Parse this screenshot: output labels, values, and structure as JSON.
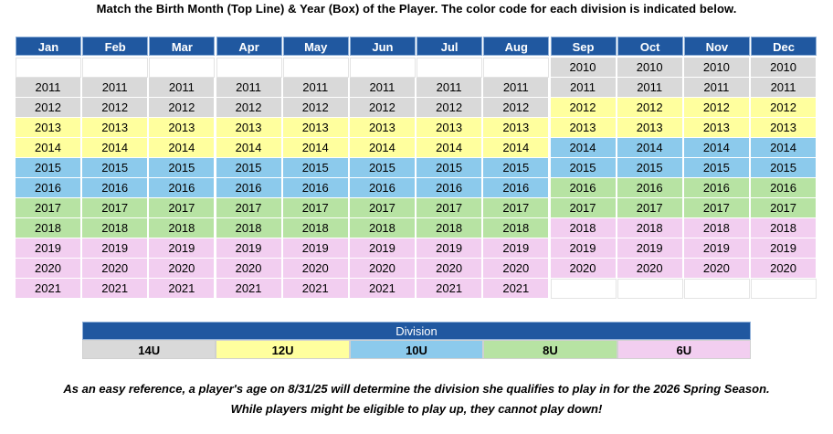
{
  "title": "Match the Birth Month (Top Line) & Year (Box) of the Player. The color code for each division is indicated below.",
  "months": [
    "Jan",
    "Feb",
    "Mar",
    "Apr",
    "May",
    "Jun",
    "Jul",
    "Aug",
    "Sep",
    "Oct",
    "Nov",
    "Dec"
  ],
  "colors": {
    "14U": "#d9d9d9",
    "12U": "#ffff9e",
    "10U": "#8ccaec",
    "8U": "#b7e3a3",
    "6U": "#f2cef0"
  },
  "grid_rows": [
    {
      "cells": [
        "",
        "",
        "",
        "",
        "",
        "",
        "",
        "",
        "2010",
        "2010",
        "2010",
        "2010"
      ],
      "divs": [
        "",
        "",
        "",
        "",
        "",
        "",
        "",
        "",
        "14U",
        "14U",
        "14U",
        "14U"
      ]
    },
    {
      "cells": [
        "2011",
        "2011",
        "2011",
        "2011",
        "2011",
        "2011",
        "2011",
        "2011",
        "2011",
        "2011",
        "2011",
        "2011"
      ],
      "divs": [
        "14U",
        "14U",
        "14U",
        "14U",
        "14U",
        "14U",
        "14U",
        "14U",
        "14U",
        "14U",
        "14U",
        "14U"
      ]
    },
    {
      "cells": [
        "2012",
        "2012",
        "2012",
        "2012",
        "2012",
        "2012",
        "2012",
        "2012",
        "2012",
        "2012",
        "2012",
        "2012"
      ],
      "divs": [
        "14U",
        "14U",
        "14U",
        "14U",
        "14U",
        "14U",
        "14U",
        "14U",
        "12U",
        "12U",
        "12U",
        "12U"
      ]
    },
    {
      "cells": [
        "2013",
        "2013",
        "2013",
        "2013",
        "2013",
        "2013",
        "2013",
        "2013",
        "2013",
        "2013",
        "2013",
        "2013"
      ],
      "divs": [
        "12U",
        "12U",
        "12U",
        "12U",
        "12U",
        "12U",
        "12U",
        "12U",
        "12U",
        "12U",
        "12U",
        "12U"
      ]
    },
    {
      "cells": [
        "2014",
        "2014",
        "2014",
        "2014",
        "2014",
        "2014",
        "2014",
        "2014",
        "2014",
        "2014",
        "2014",
        "2014"
      ],
      "divs": [
        "12U",
        "12U",
        "12U",
        "12U",
        "12U",
        "12U",
        "12U",
        "12U",
        "10U",
        "10U",
        "10U",
        "10U"
      ]
    },
    {
      "cells": [
        "2015",
        "2015",
        "2015",
        "2015",
        "2015",
        "2015",
        "2015",
        "2015",
        "2015",
        "2015",
        "2015",
        "2015"
      ],
      "divs": [
        "10U",
        "10U",
        "10U",
        "10U",
        "10U",
        "10U",
        "10U",
        "10U",
        "10U",
        "10U",
        "10U",
        "10U"
      ]
    },
    {
      "cells": [
        "2016",
        "2016",
        "2016",
        "2016",
        "2016",
        "2016",
        "2016",
        "2016",
        "2016",
        "2016",
        "2016",
        "2016"
      ],
      "divs": [
        "10U",
        "10U",
        "10U",
        "10U",
        "10U",
        "10U",
        "10U",
        "10U",
        "8U",
        "8U",
        "8U",
        "8U"
      ]
    },
    {
      "cells": [
        "2017",
        "2017",
        "2017",
        "2017",
        "2017",
        "2017",
        "2017",
        "2017",
        "2017",
        "2017",
        "2017",
        "2017"
      ],
      "divs": [
        "8U",
        "8U",
        "8U",
        "8U",
        "8U",
        "8U",
        "8U",
        "8U",
        "8U",
        "8U",
        "8U",
        "8U"
      ]
    },
    {
      "cells": [
        "2018",
        "2018",
        "2018",
        "2018",
        "2018",
        "2018",
        "2018",
        "2018",
        "2018",
        "2018",
        "2018",
        "2018"
      ],
      "divs": [
        "8U",
        "8U",
        "8U",
        "8U",
        "8U",
        "8U",
        "8U",
        "8U",
        "6U",
        "6U",
        "6U",
        "6U"
      ]
    },
    {
      "cells": [
        "2019",
        "2019",
        "2019",
        "2019",
        "2019",
        "2019",
        "2019",
        "2019",
        "2019",
        "2019",
        "2019",
        "2019"
      ],
      "divs": [
        "6U",
        "6U",
        "6U",
        "6U",
        "6U",
        "6U",
        "6U",
        "6U",
        "6U",
        "6U",
        "6U",
        "6U"
      ]
    },
    {
      "cells": [
        "2020",
        "2020",
        "2020",
        "2020",
        "2020",
        "2020",
        "2020",
        "2020",
        "2020",
        "2020",
        "2020",
        "2020"
      ],
      "divs": [
        "6U",
        "6U",
        "6U",
        "6U",
        "6U",
        "6U",
        "6U",
        "6U",
        "6U",
        "6U",
        "6U",
        "6U"
      ]
    },
    {
      "cells": [
        "2021",
        "2021",
        "2021",
        "2021",
        "2021",
        "2021",
        "2021",
        "2021",
        "",
        "",
        "",
        ""
      ],
      "divs": [
        "6U",
        "6U",
        "6U",
        "6U",
        "6U",
        "6U",
        "6U",
        "6U",
        "",
        "",
        "",
        ""
      ]
    }
  ],
  "division": {
    "title": "Division",
    "items": [
      "14U",
      "12U",
      "10U",
      "8U",
      "6U"
    ]
  },
  "notes": {
    "line1": "As an easy reference, a player's age on 8/31/25 will determine the division she qualifies to play in for the 2026 Spring Season.",
    "line2": "While players might be eligible to play up, they cannot play down!"
  }
}
